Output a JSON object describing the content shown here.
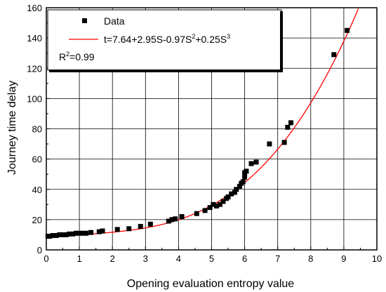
{
  "chart_data": {
    "type": "scatter",
    "xlabel": "Opening evaluation entropy value",
    "ylabel": "Journey time delay",
    "xlim": [
      0,
      10
    ],
    "ylim": [
      0,
      160
    ],
    "xticks": [
      0,
      1,
      2,
      3,
      4,
      5,
      6,
      7,
      8,
      9,
      10
    ],
    "yticks": [
      0,
      20,
      40,
      60,
      80,
      100,
      120,
      140,
      160
    ],
    "grid": true,
    "legend_position": "top-left",
    "series": [
      {
        "name": "Data",
        "kind": "scatter",
        "marker": "square",
        "color": "#000000",
        "points": [
          [
            0.05,
            9
          ],
          [
            0.1,
            9
          ],
          [
            0.2,
            9.5
          ],
          [
            0.3,
            9.5
          ],
          [
            0.4,
            10
          ],
          [
            0.5,
            10
          ],
          [
            0.6,
            10
          ],
          [
            0.7,
            10.5
          ],
          [
            0.8,
            10.5
          ],
          [
            0.9,
            11
          ],
          [
            1.0,
            11
          ],
          [
            1.1,
            11
          ],
          [
            1.2,
            11
          ],
          [
            1.35,
            11.5
          ],
          [
            1.6,
            12
          ],
          [
            1.7,
            12.5
          ],
          [
            2.15,
            13.5
          ],
          [
            2.5,
            14
          ],
          [
            2.85,
            15.5
          ],
          [
            3.15,
            17
          ],
          [
            3.7,
            19
          ],
          [
            3.8,
            20
          ],
          [
            3.9,
            20.5
          ],
          [
            4.1,
            22
          ],
          [
            4.55,
            24
          ],
          [
            4.8,
            26
          ],
          [
            4.95,
            28
          ],
          [
            5.05,
            30
          ],
          [
            5.15,
            29
          ],
          [
            5.25,
            30
          ],
          [
            5.35,
            32
          ],
          [
            5.45,
            34
          ],
          [
            5.5,
            35
          ],
          [
            5.6,
            37
          ],
          [
            5.7,
            38
          ],
          [
            5.75,
            40
          ],
          [
            5.85,
            42
          ],
          [
            5.9,
            44
          ],
          [
            5.95,
            45
          ],
          [
            6.0,
            48
          ],
          [
            6.0,
            51
          ],
          [
            6.05,
            52
          ],
          [
            6.2,
            57
          ],
          [
            6.35,
            58
          ],
          [
            6.75,
            70
          ],
          [
            7.2,
            71
          ],
          [
            7.3,
            81
          ],
          [
            7.4,
            84
          ],
          [
            8.7,
            129
          ],
          [
            9.1,
            145
          ]
        ]
      },
      {
        "name": "t=7.64+2.95S-0.97S²+0.25S³",
        "kind": "fit",
        "color": "#ff0000",
        "coefficients": [
          7.64,
          2.95,
          -0.97,
          0.25
        ]
      }
    ],
    "legend": {
      "data_label": "Data",
      "fit_label_main": "t=7.64+2.95S-0.97S",
      "fit_sup_1": "2",
      "fit_label_mid": "+0.25S",
      "fit_sup_2": "3",
      "r2_main": "R",
      "r2_sup": "2",
      "r2_value": "=0.99"
    }
  }
}
